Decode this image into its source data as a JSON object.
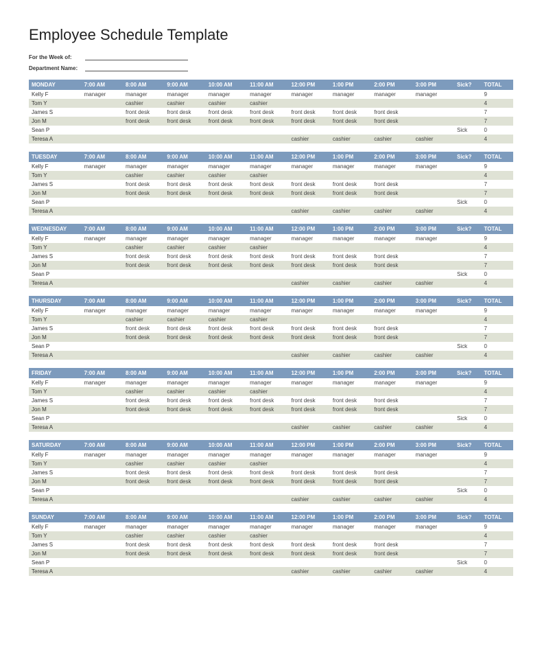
{
  "title": "Employee Schedule Template",
  "meta": {
    "week_label": "For the Week of:",
    "department_label": "Department Name:"
  },
  "colors": {
    "header_bg": "#7d9bbd",
    "header_fg": "#ffffff",
    "row_even_bg": "#ffffff",
    "row_odd_bg": "#dfe2d5",
    "text": "#444444",
    "page_bg": "#ffffff"
  },
  "columns": {
    "time_headers": [
      "7:00 AM",
      "8:00 AM",
      "9:00 AM",
      "10:00 AM",
      "11:00 AM",
      "12:00 PM",
      "1:00 PM",
      "2:00 PM",
      "3:00 PM"
    ],
    "sick_header": "Sick?",
    "total_header": "TOTAL"
  },
  "days": [
    {
      "name": "MONDAY"
    },
    {
      "name": "TUESDAY"
    },
    {
      "name": "WEDNESDAY"
    },
    {
      "name": "THURSDAY"
    },
    {
      "name": "FRIDAY"
    },
    {
      "name": "SATURDAY"
    },
    {
      "name": "SUNDAY"
    }
  ],
  "employees": [
    {
      "name": "Kelly F",
      "slots": [
        "manager",
        "manager",
        "manager",
        "manager",
        "manager",
        "manager",
        "manager",
        "manager",
        "manager"
      ],
      "sick": "",
      "total": "9"
    },
    {
      "name": "Tom Y",
      "slots": [
        "",
        "cashier",
        "cashier",
        "cashier",
        "cashier",
        "",
        "",
        "",
        ""
      ],
      "sick": "",
      "total": "4"
    },
    {
      "name": "James S",
      "slots": [
        "",
        "front desk",
        "front desk",
        "front desk",
        "front desk",
        "front desk",
        "front desk",
        "front desk",
        ""
      ],
      "sick": "",
      "total": "7"
    },
    {
      "name": "Jon M",
      "slots": [
        "",
        "front desk",
        "front desk",
        "front desk",
        "front desk",
        "front desk",
        "front desk",
        "front desk",
        ""
      ],
      "sick": "",
      "total": "7"
    },
    {
      "name": "Sean P",
      "slots": [
        "",
        "",
        "",
        "",
        "",
        "",
        "",
        "",
        ""
      ],
      "sick": "Sick",
      "total": "0"
    },
    {
      "name": "Teresa A",
      "slots": [
        "",
        "",
        "",
        "",
        "",
        "cashier",
        "cashier",
        "cashier",
        "cashier"
      ],
      "sick": "",
      "total": "4"
    }
  ]
}
